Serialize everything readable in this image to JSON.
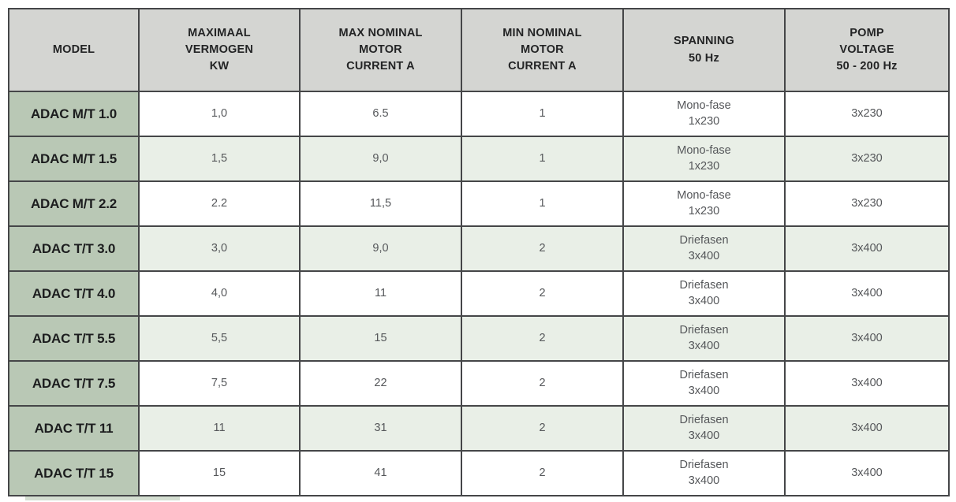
{
  "table": {
    "columns": [
      "MODEL",
      "MAXIMAAL\nVERMOGEN\nKW",
      "MAX NOMINAL\nMOTOR\nCURRENT A",
      "MIN NOMINAL\nMOTOR\nCURRENT A",
      "SPANNING\n50 Hz",
      "POMP\nVOLTAGE\n50 - 200 Hz"
    ],
    "rows": [
      {
        "model": "ADAC M/T 1.0",
        "values": [
          "1,0",
          "6.5",
          "1",
          "Mono-fase\n1x230",
          "3x230"
        ]
      },
      {
        "model": "ADAC M/T 1.5",
        "values": [
          "1,5",
          "9,0",
          "1",
          "Mono-fase\n1x230",
          "3x230"
        ]
      },
      {
        "model": "ADAC M/T 2.2",
        "values": [
          "2.2",
          "11,5",
          "1",
          "Mono-fase\n1x230",
          "3x230"
        ]
      },
      {
        "model": "ADAC T/T 3.0",
        "values": [
          "3,0",
          "9,0",
          "2",
          "Driefasen\n3x400",
          "3x400"
        ]
      },
      {
        "model": "ADAC T/T 4.0",
        "values": [
          "4,0",
          "11",
          "2",
          "Driefasen\n3x400",
          "3x400"
        ]
      },
      {
        "model": "ADAC T/T 5.5",
        "values": [
          "5,5",
          "15",
          "2",
          "Driefasen\n3x400",
          "3x400"
        ]
      },
      {
        "model": "ADAC T/T 7.5",
        "values": [
          "7,5",
          "22",
          "2",
          "Driefasen\n3x400",
          "3x400"
        ]
      },
      {
        "model": "ADAC T/T 11",
        "values": [
          "11",
          "31",
          "2",
          "Driefasen\n3x400",
          "3x400"
        ]
      },
      {
        "model": "ADAC T/T 15",
        "values": [
          "15",
          "41",
          "2",
          "Driefasen\n3x400",
          "3x400"
        ]
      }
    ],
    "colors": {
      "header_bg": "#d4d5d2",
      "model_column_bg": "#b9c8b5",
      "row_bg": "#ffffff",
      "row_alt_bg": "#e9efe7",
      "border": "#454648",
      "header_text": "#232425",
      "value_text": "#55575a"
    }
  }
}
